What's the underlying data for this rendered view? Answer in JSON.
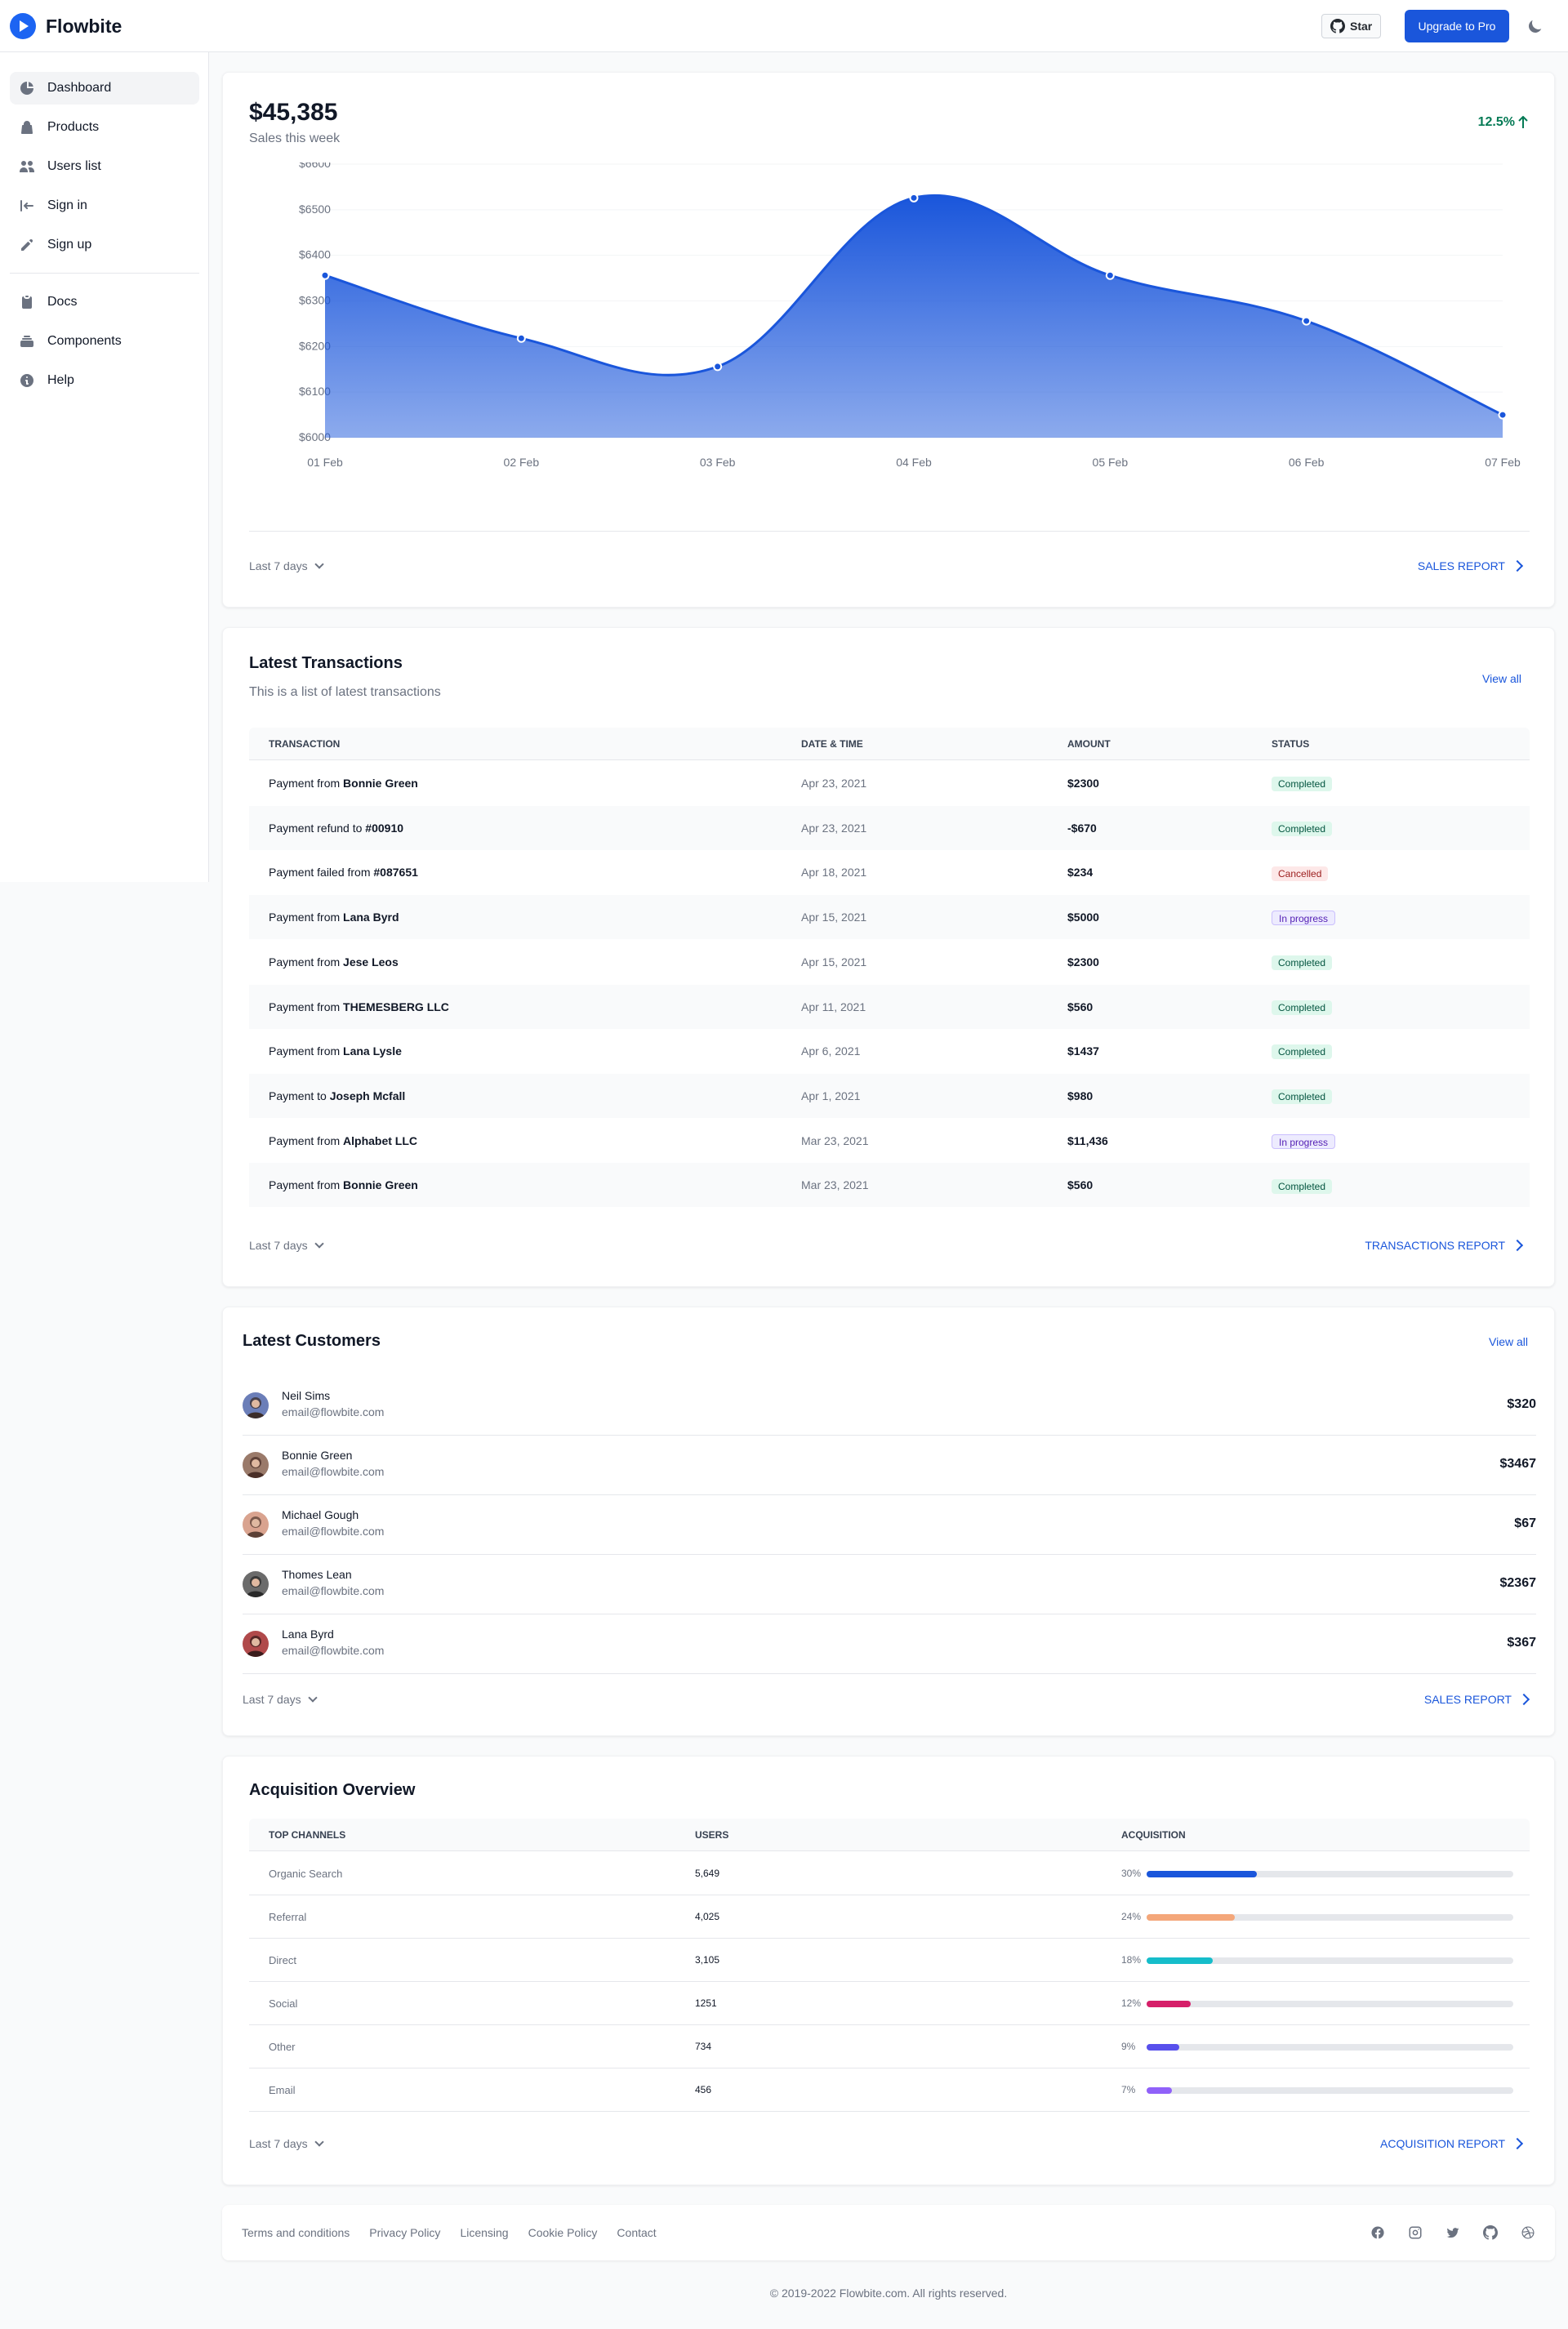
{
  "navbar": {
    "brand": "Flowbite",
    "star_label": "Star",
    "upgrade_label": "Upgrade to Pro"
  },
  "sidebar": {
    "items": [
      {
        "label": "Dashboard",
        "icon": "chart-pie-icon"
      },
      {
        "label": "Products",
        "icon": "shopping-bag-icon"
      },
      {
        "label": "Users list",
        "icon": "users-icon"
      },
      {
        "label": "Sign in",
        "icon": "sign-in-icon"
      },
      {
        "label": "Sign up",
        "icon": "pencil-icon"
      }
    ],
    "secondary": [
      {
        "label": "Docs",
        "icon": "clipboard-icon"
      },
      {
        "label": "Components",
        "icon": "collection-icon"
      },
      {
        "label": "Help",
        "icon": "info-icon"
      }
    ]
  },
  "sales": {
    "value": "$45,385",
    "subtitle": "Sales this week",
    "change": "12.5%",
    "range": "Last 7 days",
    "report_link": "SALES REPORT"
  },
  "chart_data": {
    "type": "area",
    "x": [
      "01 Feb",
      "02 Feb",
      "03 Feb",
      "04 Feb",
      "05 Feb",
      "06 Feb",
      "07 Feb"
    ],
    "series": [
      {
        "values": [
          6356,
          6218,
          6156,
          6526,
          6356,
          6256,
          6050
        ]
      }
    ],
    "y_ticks": [
      "$6600",
      "$6500",
      "$6400",
      "$6300",
      "$6200",
      "$6100",
      "$6000"
    ],
    "ylim": [
      6000,
      6600
    ],
    "color": "#1a56db"
  },
  "transactions": {
    "title": "Latest Transactions",
    "subtitle": "This is a list of latest transactions",
    "view_all": "View all",
    "columns": [
      "Transaction",
      "Date & Time",
      "Amount",
      "Status"
    ],
    "rows": [
      {
        "prefix": "Payment from ",
        "name": "Bonnie Green",
        "date": "Apr 23, 2021",
        "amount": "$2300",
        "status": "Completed"
      },
      {
        "prefix": "Payment refund to ",
        "name": "#00910",
        "date": "Apr 23, 2021",
        "amount": "-$670",
        "status": "Completed"
      },
      {
        "prefix": "Payment failed from ",
        "name": "#087651",
        "date": "Apr 18, 2021",
        "amount": "$234",
        "status": "Cancelled"
      },
      {
        "prefix": "Payment from ",
        "name": "Lana Byrd",
        "date": "Apr 15, 2021",
        "amount": "$5000",
        "status": "In progress"
      },
      {
        "prefix": "Payment from ",
        "name": "Jese Leos",
        "date": "Apr 15, 2021",
        "amount": "$2300",
        "status": "Completed"
      },
      {
        "prefix": "Payment from ",
        "name": "THEMESBERG LLC",
        "date": "Apr 11, 2021",
        "amount": "$560",
        "status": "Completed"
      },
      {
        "prefix": "Payment from ",
        "name": "Lana Lysle",
        "date": "Apr 6, 2021",
        "amount": "$1437",
        "status": "Completed"
      },
      {
        "prefix": "Payment to ",
        "name": "Joseph Mcfall",
        "date": "Apr 1, 2021",
        "amount": "$980",
        "status": "Completed"
      },
      {
        "prefix": "Payment from ",
        "name": "Alphabet LLC",
        "date": "Mar 23, 2021",
        "amount": "$11,436",
        "status": "In progress"
      },
      {
        "prefix": "Payment from ",
        "name": "Bonnie Green",
        "date": "Mar 23, 2021",
        "amount": "$560",
        "status": "Completed"
      }
    ],
    "range": "Last 7 days",
    "report_link": "TRANSACTIONS REPORT"
  },
  "customers": {
    "title": "Latest Customers",
    "view_all": "View all",
    "rows": [
      {
        "name": "Neil Sims",
        "email": "email@flowbite.com",
        "amount": "$320",
        "colors": [
          "#6b7eb8",
          "#3b2d2a"
        ]
      },
      {
        "name": "Bonnie Green",
        "email": "email@flowbite.com",
        "amount": "$3467",
        "colors": [
          "#9a7a6a",
          "#4a2f28"
        ]
      },
      {
        "name": "Michael Gough",
        "email": "email@flowbite.com",
        "amount": "$67",
        "colors": [
          "#d9a38f",
          "#5b4036"
        ]
      },
      {
        "name": "Thomes Lean",
        "email": "email@flowbite.com",
        "amount": "$2367",
        "colors": [
          "#6b6b6b",
          "#2a2a2a"
        ]
      },
      {
        "name": "Lana Byrd",
        "email": "email@flowbite.com",
        "amount": "$367",
        "colors": [
          "#b0494a",
          "#3a1c1c"
        ]
      }
    ],
    "range": "Last 7 days",
    "report_link": "SALES REPORT"
  },
  "acquisition": {
    "title": "Acquisition Overview",
    "columns": [
      "Top Channels",
      "Users",
      "Acquisition"
    ],
    "rows": [
      {
        "channel": "Organic Search",
        "users": "5,649",
        "pct_label": "30%",
        "pct": 30,
        "color": "#1a56db"
      },
      {
        "channel": "Referral",
        "users": "4,025",
        "pct_label": "24%",
        "pct": 24,
        "color": "#f4a77a"
      },
      {
        "channel": "Direct",
        "users": "3,105",
        "pct_label": "18%",
        "pct": 18,
        "color": "#16bdca"
      },
      {
        "channel": "Social",
        "users": "1251",
        "pct_label": "12%",
        "pct": 12,
        "color": "#d61f69"
      },
      {
        "channel": "Other",
        "users": "734",
        "pct_label": "9%",
        "pct": 9,
        "color": "#5850ec"
      },
      {
        "channel": "Email",
        "users": "456",
        "pct_label": "7%",
        "pct": 7,
        "color": "#9061f9"
      }
    ],
    "range": "Last 7 days",
    "report_link": "ACQUISITION REPORT"
  },
  "footer": {
    "links": [
      "Terms and conditions",
      "Privacy Policy",
      "Licensing",
      "Cookie Policy",
      "Contact"
    ],
    "social": [
      "facebook-icon",
      "instagram-icon",
      "twitter-icon",
      "github-icon",
      "dribbble-icon"
    ],
    "copyright": "© 2019-2022 Flowbite.com. All rights reserved."
  }
}
